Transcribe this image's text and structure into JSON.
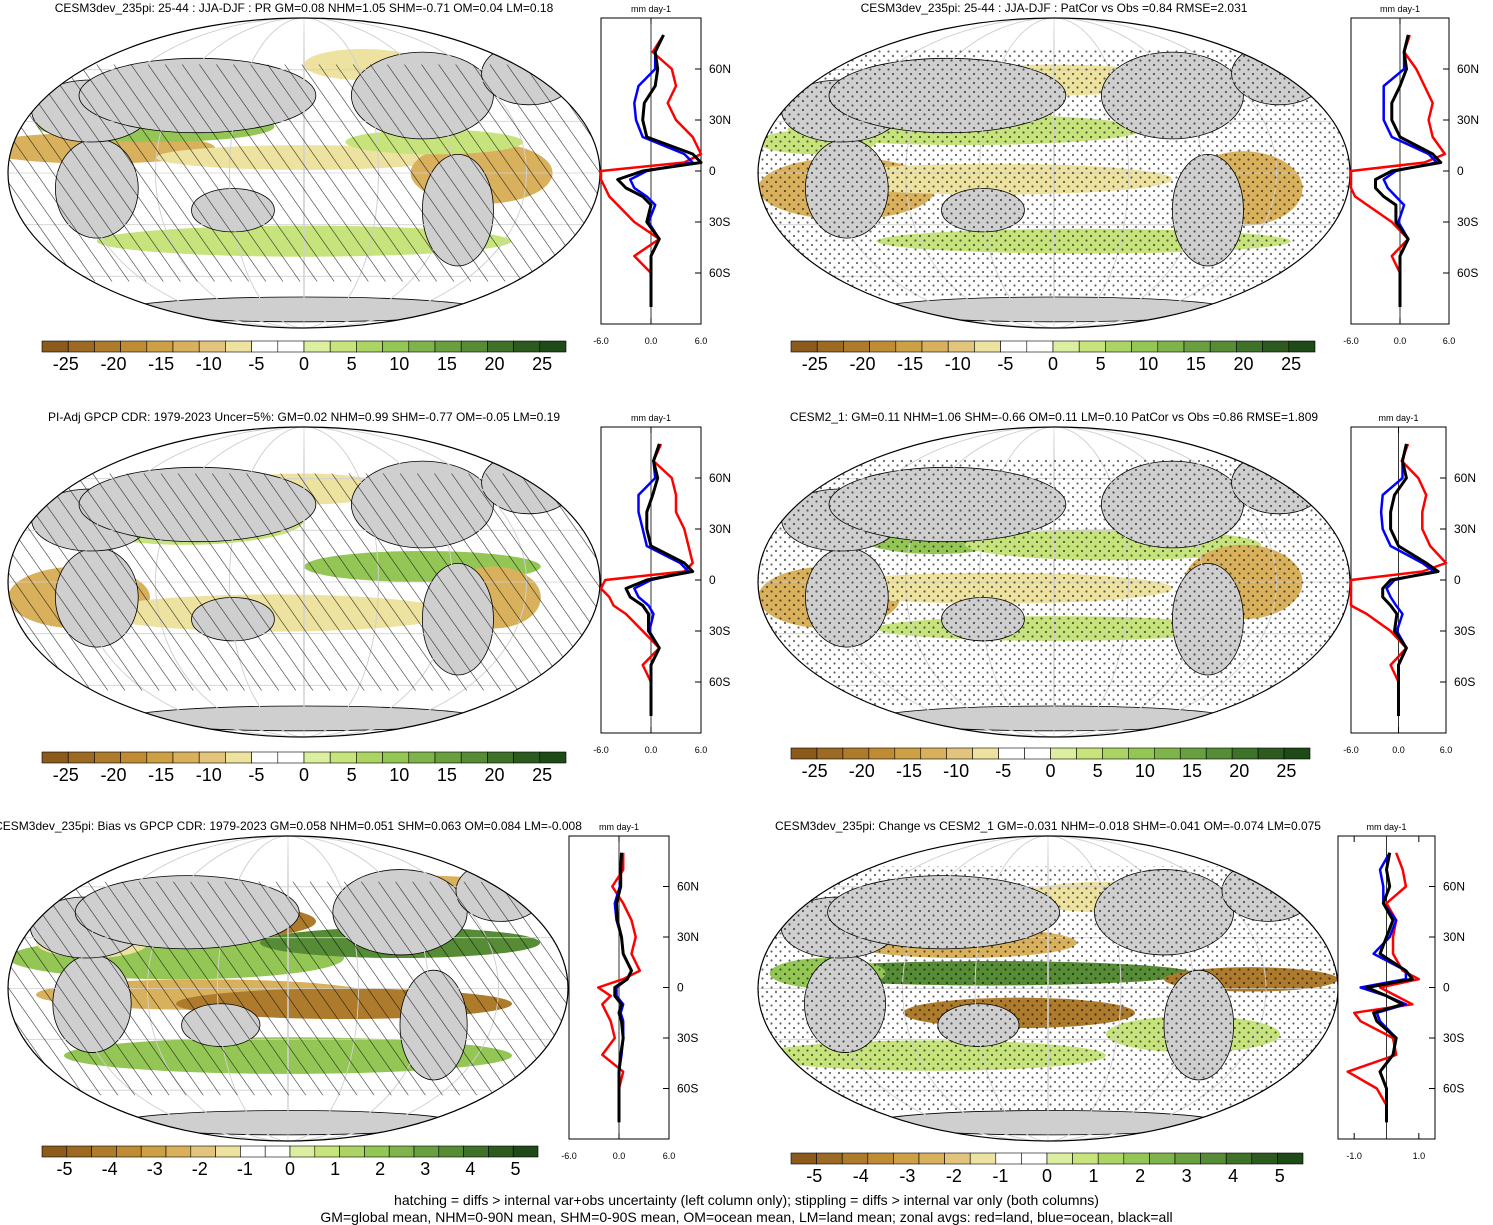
{
  "figure": {
    "footnotes": [
      "hatching = diffs > internal var+obs uncertainty (left column only); stippling = diffs > internal var only (both columns)",
      "GM=global mean, NHM=0-90N mean, SHM=0-90S mean, OM=ocean mean, LM=land mean; zonal avgs: red=land, blue=ocean, black=all"
    ]
  },
  "colors": {
    "scale": [
      "#8c5a1b",
      "#9c6a23",
      "#ad7b2b",
      "#bf8c33",
      "#cda046",
      "#d9b15d",
      "#e3c47c",
      "#ede29f",
      "#ffffff",
      "#ffffff",
      "#dcee9f",
      "#c6e37c",
      "#acd465",
      "#94c655",
      "#7fb34b",
      "#6a9f3f",
      "#568c35",
      "#3f7229",
      "#2d5a1f",
      "#1d4a17"
    ],
    "land": "#cfcfcf",
    "red": "#ff0000",
    "blue": "#0000ff",
    "black": "#000000"
  },
  "chart_data": [
    {
      "type": "heatmap",
      "title": "CESM3dev_235pi: 25-44 : JJA-DJF : PR GM=0.08 NHM=1.05 SHM=-0.71 OM=0.04 LM=0.18",
      "colorbar_labels": [
        "-25",
        "-20",
        "-15",
        "-10",
        "-5",
        "0",
        "5",
        "10",
        "15",
        "20",
        "25"
      ],
      "zonal_units": "mm day-1",
      "lat_ticks": [
        "60N",
        "30N",
        "0",
        "30S",
        "60S"
      ],
      "zonal_x_ticks": [
        "-6.0",
        "0.0",
        "6.0"
      ],
      "zonal_xlim": [
        -6,
        6
      ],
      "zonal_profiles": {
        "lat": [
          80,
          70,
          60,
          50,
          40,
          30,
          20,
          10,
          5,
          0,
          -5,
          -10,
          -15,
          -20,
          -30,
          -40,
          -50,
          -60,
          -70,
          -80
        ],
        "all": [
          1.5,
          0.5,
          0.8,
          0.5,
          -0.8,
          -1,
          -0.5,
          5,
          6,
          -1,
          -4,
          -3,
          -1,
          0,
          -0.5,
          1,
          0,
          0,
          0,
          0
        ],
        "ocean": [
          1.5,
          0.5,
          0.5,
          -1.5,
          -2,
          -1.8,
          -1,
          4,
          5,
          -0.5,
          -2.5,
          -2,
          -0.5,
          0.5,
          -0.3,
          1,
          0,
          0,
          0,
          0
        ],
        "land": [
          1.5,
          0.2,
          2.5,
          3,
          2,
          3,
          5,
          6,
          4,
          -6.5,
          -6.5,
          -5.5,
          -5,
          -4,
          -2,
          1,
          -2,
          0,
          0,
          0
        ]
      }
    },
    {
      "type": "heatmap",
      "title": "CESM3dev_235pi: 25-44 : JJA-DJF : PatCor vs Obs =0.84 RMSE=2.031",
      "colorbar_labels": [
        "-25",
        "-20",
        "-15",
        "-10",
        "-5",
        "0",
        "5",
        "10",
        "15",
        "20",
        "25"
      ],
      "zonal_units": "mm day-1",
      "lat_ticks": [
        "60N",
        "30N",
        "0",
        "30S",
        "60S"
      ],
      "zonal_x_ticks": [
        "-6.0",
        "0.0",
        "6.0"
      ],
      "zonal_xlim": [
        -6,
        6
      ],
      "zonal_profiles": {
        "lat": [
          80,
          70,
          60,
          50,
          40,
          30,
          20,
          10,
          5,
          0,
          -5,
          -10,
          -15,
          -20,
          -30,
          -40,
          -50,
          -60,
          -70,
          -80
        ],
        "all": [
          1,
          0.5,
          0.8,
          0,
          -1,
          -1,
          0,
          4,
          5,
          -1,
          -3,
          -3,
          -2,
          -0.5,
          -0.5,
          1,
          0,
          0,
          0,
          0
        ],
        "ocean": [
          1,
          0.5,
          0.5,
          -2,
          -2,
          -2,
          -1,
          3.5,
          4.5,
          -0.5,
          -2,
          -1.5,
          -0.5,
          0.5,
          -0.2,
          1,
          0,
          0,
          0,
          0
        ],
        "land": [
          1.2,
          0.5,
          2,
          3,
          4,
          3.5,
          4,
          5.5,
          3,
          -6,
          -6,
          -6,
          -5.5,
          -4,
          -1,
          1,
          -1,
          0,
          0,
          0
        ]
      }
    },
    {
      "type": "heatmap",
      "title": "PI-Adj GPCP CDR: 1979-2023 Uncer=5%: GM=0.02 NHM=0.99 SHM=-0.77 OM=-0.05 LM=0.19",
      "colorbar_labels": [
        "-25",
        "-20",
        "-15",
        "-10",
        "-5",
        "0",
        "5",
        "10",
        "15",
        "20",
        "25"
      ],
      "zonal_units": "mm day-1",
      "lat_ticks": [
        "60N",
        "30N",
        "0",
        "30S",
        "60S"
      ],
      "zonal_x_ticks": [
        "-6.0",
        "0.0",
        "6.0"
      ],
      "zonal_xlim": [
        -6,
        6
      ],
      "zonal_profiles": {
        "lat": [
          80,
          70,
          60,
          50,
          40,
          30,
          20,
          10,
          5,
          0,
          -5,
          -10,
          -15,
          -20,
          -30,
          -40,
          -50,
          -60,
          -70,
          -80
        ],
        "all": [
          1,
          0.3,
          0.8,
          0.2,
          -0.5,
          -0.5,
          0,
          4,
          5,
          -0.5,
          -3,
          -2.5,
          -1,
          -0.3,
          -0.3,
          1,
          0,
          0,
          0,
          0
        ],
        "ocean": [
          1,
          0.3,
          0.5,
          -1.5,
          -1.5,
          -1,
          -0.5,
          3.5,
          4.5,
          0,
          -2,
          -1.5,
          -0.3,
          0.3,
          -0.2,
          1,
          0,
          0,
          0,
          0
        ],
        "land": [
          1.2,
          0.3,
          2.5,
          3,
          3,
          4,
          4.5,
          5,
          4,
          -5.5,
          -6,
          -5,
          -4.5,
          -3,
          -1,
          1,
          -1,
          0,
          0,
          0
        ]
      }
    },
    {
      "type": "heatmap",
      "title": "CESM2_1: GM=0.11 NHM=1.06 SHM=-0.66 OM=0.11 LM=0.10 PatCor vs Obs =0.86 RMSE=1.809",
      "colorbar_labels": [
        "-25",
        "-20",
        "-15",
        "-10",
        "-5",
        "0",
        "5",
        "10",
        "15",
        "20",
        "25"
      ],
      "zonal_units": "mm day-1",
      "lat_ticks": [
        "60N",
        "30N",
        "0",
        "30S",
        "60S"
      ],
      "zonal_x_ticks": [
        "-6.0",
        "0.0",
        "6.0"
      ],
      "zonal_xlim": [
        -6,
        6
      ],
      "zonal_profiles": {
        "lat": [
          80,
          70,
          60,
          50,
          40,
          30,
          20,
          10,
          5,
          0,
          -5,
          -10,
          -15,
          -20,
          -30,
          -40,
          -50,
          -60,
          -70,
          -80
        ],
        "all": [
          1,
          0.5,
          1,
          -0.5,
          -1,
          -1,
          0,
          3.5,
          5,
          -1,
          -2,
          -2,
          -1,
          -0.2,
          -0.5,
          1,
          0,
          0,
          0,
          0
        ],
        "ocean": [
          1,
          0.5,
          0.5,
          -2,
          -2.2,
          -2,
          -1,
          3,
          4.5,
          -0.5,
          -1.5,
          -1,
          -0.3,
          0.5,
          -0.2,
          1,
          0,
          0,
          0,
          0
        ],
        "land": [
          1.2,
          0.4,
          2.5,
          3.5,
          3,
          3,
          4,
          6,
          3,
          -7,
          -7,
          -6.5,
          -6,
          -4,
          -1,
          1,
          -1,
          0,
          0,
          0
        ]
      }
    },
    {
      "type": "heatmap",
      "title": "CESM3dev_235pi: Bias vs GPCP CDR: 1979-2023 GM=0.058 NHM=0.051 SHM=0.063 OM=0.084 LM=-0.008",
      "colorbar_labels": [
        "-5",
        "-4",
        "-3",
        "-2",
        "-1",
        "0",
        "1",
        "2",
        "3",
        "4",
        "5"
      ],
      "zonal_units": "mm day-1",
      "lat_ticks": [
        "60N",
        "30N",
        "0",
        "30S",
        "60S"
      ],
      "zonal_x_ticks": [
        "-6.0",
        "0.0",
        "6.0"
      ],
      "zonal_xlim": [
        -6,
        6
      ],
      "zonal_profiles": {
        "lat": [
          80,
          70,
          60,
          50,
          40,
          30,
          20,
          10,
          5,
          0,
          -5,
          -10,
          -15,
          -20,
          -30,
          -40,
          -50,
          -60,
          -70,
          -80
        ],
        "all": [
          0.3,
          0.2,
          0.2,
          -0.3,
          -0.2,
          0.3,
          0.5,
          1.5,
          1,
          -0.5,
          -0.5,
          0.3,
          0,
          0.3,
          0.5,
          0.2,
          0,
          0,
          0,
          0
        ],
        "ocean": [
          0.3,
          0.2,
          0.1,
          -0.5,
          -0.3,
          0.3,
          0.5,
          1.5,
          1,
          -0.3,
          -0.3,
          0.5,
          0.2,
          0.5,
          0.5,
          0.3,
          0,
          0,
          0,
          0
        ],
        "land": [
          0.5,
          0.5,
          -0.8,
          0.5,
          1.5,
          2,
          1.5,
          2.5,
          0.5,
          -2.5,
          -1,
          -2,
          -1.5,
          -1,
          -0.5,
          -2,
          0.5,
          0,
          0,
          0
        ]
      }
    },
    {
      "type": "heatmap",
      "title": "CESM3dev_235pi: Change vs CESM2_1 GM=-0.031 NHM=-0.018 SHM=-0.041 OM=-0.074 LM=0.075",
      "colorbar_labels": [
        "-5",
        "-4",
        "-3",
        "-2",
        "-1",
        "0",
        "1",
        "2",
        "3",
        "4",
        "5"
      ],
      "zonal_units": "mm day-1",
      "lat_ticks": [
        "60N",
        "30N",
        "0",
        "30S",
        "60S"
      ],
      "zonal_x_ticks": [
        "-1.0",
        "1.0"
      ],
      "zonal_xlim": [
        -1.5,
        1.5
      ],
      "zonal_profiles": {
        "lat": [
          80,
          70,
          60,
          50,
          40,
          30,
          20,
          10,
          5,
          0,
          -5,
          -10,
          -15,
          -20,
          -30,
          -40,
          -50,
          -60,
          -70,
          -80
        ],
        "all": [
          0.1,
          0,
          0.1,
          -0.1,
          0.2,
          0,
          -0.2,
          0.6,
          0.8,
          -0.6,
          0,
          0.5,
          -0.4,
          -0.3,
          0.3,
          0.2,
          -0.2,
          0,
          0,
          0
        ],
        "ocean": [
          0.1,
          -0.2,
          -0.1,
          -0.1,
          0.3,
          0.1,
          -0.4,
          0.6,
          0.6,
          -0.8,
          0,
          0.6,
          -0.3,
          -0.2,
          0.3,
          0.2,
          -0.2,
          0,
          0,
          0
        ],
        "land": [
          0.3,
          0.5,
          0.6,
          0,
          0.3,
          0.2,
          0.2,
          0.5,
          1,
          -0.2,
          0.3,
          0.8,
          -1,
          -0.8,
          0.2,
          0.3,
          -1.2,
          -0.3,
          0,
          0
        ]
      }
    }
  ]
}
